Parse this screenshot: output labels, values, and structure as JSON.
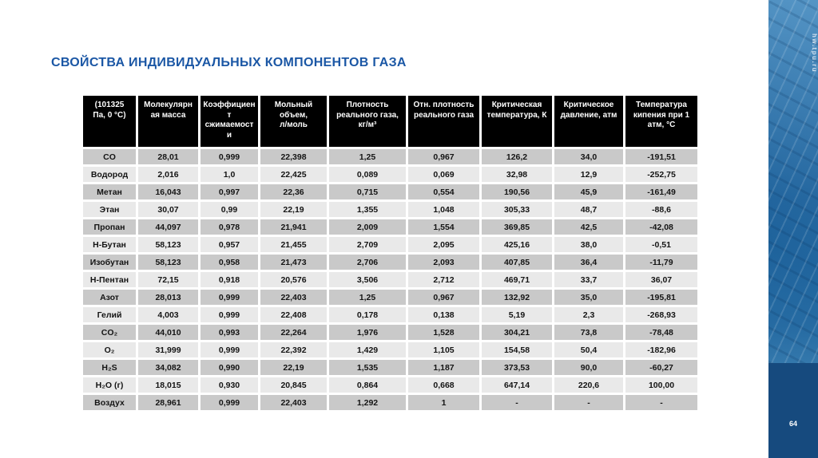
{
  "slide": {
    "title": "СВОЙСТВА ИНДИВИДУАЛЬНЫХ КОМПОНЕНТОВ ГАЗА",
    "page_number": "64",
    "sidebar_url": "hw.tpu.ru"
  },
  "colors": {
    "title": "#1b57a5",
    "header_bg": "#000000",
    "header_text": "#ffffff",
    "row_dark": "#c9c9c9",
    "row_light": "#e9e9e9",
    "sidebar_bottom": "#164a7e"
  },
  "chart_data": {
    "type": "table",
    "title": "СВОЙСТВА ИНДИВИДУАЛЬНЫХ КОМПОНЕНТОВ ГАЗА",
    "headers": [
      "(101325\nПа, 0 °C)",
      "Молекулярн\nая масса",
      "Коэффициен\nт\nсжимаемост\nи",
      "Мольный\nобъем,\nл/моль",
      "Плотность\nреального газа,\nкг/м³",
      "Отн. плотность\nреального газа",
      "Критическая\nтемпература, К",
      "Критическое\nдавление, атм",
      "Температура\nкипения при 1\nатм, °C"
    ],
    "rows": [
      [
        "CO",
        "28,01",
        "0,999",
        "22,398",
        "1,25",
        "0,967",
        "126,2",
        "34,0",
        "-191,51"
      ],
      [
        "Водород",
        "2,016",
        "1,0",
        "22,425",
        "0,089",
        "0,069",
        "32,98",
        "12,9",
        "-252,75"
      ],
      [
        "Метан",
        "16,043",
        "0,997",
        "22,36",
        "0,715",
        "0,554",
        "190,56",
        "45,9",
        "-161,49"
      ],
      [
        "Этан",
        "30,07",
        "0,99",
        "22,19",
        "1,355",
        "1,048",
        "305,33",
        "48,7",
        "-88,6"
      ],
      [
        "Пропан",
        "44,097",
        "0,978",
        "21,941",
        "2,009",
        "1,554",
        "369,85",
        "42,5",
        "-42,08"
      ],
      [
        "Н-Бутан",
        "58,123",
        "0,957",
        "21,455",
        "2,709",
        "2,095",
        "425,16",
        "38,0",
        "-0,51"
      ],
      [
        "Изобутан",
        "58,123",
        "0,958",
        "21,473",
        "2,706",
        "2,093",
        "407,85",
        "36,4",
        "-11,79"
      ],
      [
        "Н-Пентан",
        "72,15",
        "0,918",
        "20,576",
        "3,506",
        "2,712",
        "469,71",
        "33,7",
        "36,07"
      ],
      [
        "Азот",
        "28,013",
        "0,999",
        "22,403",
        "1,25",
        "0,967",
        "132,92",
        "35,0",
        "-195,81"
      ],
      [
        "Гелий",
        "4,003",
        "0,999",
        "22,408",
        "0,178",
        "0,138",
        "5,19",
        "2,3",
        "-268,93"
      ],
      [
        "CO₂",
        "44,010",
        "0,993",
        "22,264",
        "1,976",
        "1,528",
        "304,21",
        "73,8",
        "-78,48"
      ],
      [
        "O₂",
        "31,999",
        "0,999",
        "22,392",
        "1,429",
        "1,105",
        "154,58",
        "50,4",
        "-182,96"
      ],
      [
        "H₂S",
        "34,082",
        "0,990",
        "22,19",
        "1,535",
        "1,187",
        "373,53",
        "90,0",
        "-60,27"
      ],
      [
        "H₂O (г)",
        "18,015",
        "0,930",
        "20,845",
        "0,864",
        "0,668",
        "647,14",
        "220,6",
        "100,00"
      ],
      [
        "Воздух",
        "28,961",
        "0,999",
        "22,403",
        "1,292",
        "1",
        "-",
        "-",
        "-"
      ]
    ]
  }
}
